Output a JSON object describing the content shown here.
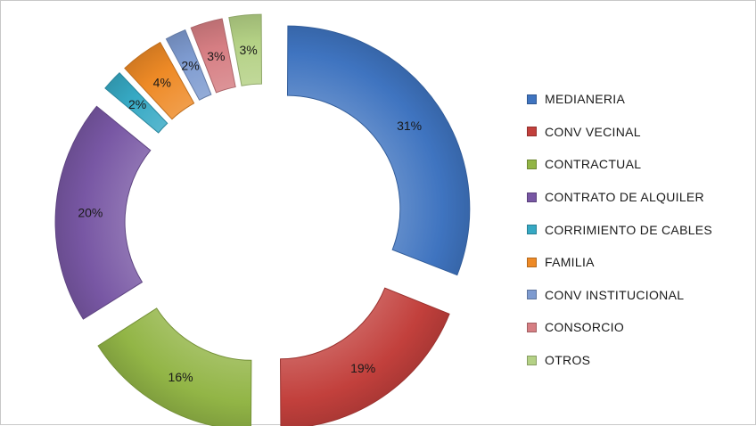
{
  "chart_data": {
    "type": "pie",
    "title": "",
    "series": [
      {
        "name": "MEDIANERIA",
        "value": 31,
        "label": "31%",
        "color": "#3f74c0"
      },
      {
        "name": "CONV VECINAL",
        "value": 19,
        "label": "19%",
        "color": "#c2403c"
      },
      {
        "name": "CONTRACTUAL",
        "value": 16,
        "label": "16%",
        "color": "#92b546"
      },
      {
        "name": "CONTRATO DE ALQUILER",
        "value": 20,
        "label": "20%",
        "color": "#7857a4"
      },
      {
        "name": "CORRIMIENTO DE CABLES",
        "value": 2,
        "label": "2%",
        "color": "#36a9c4"
      },
      {
        "name": "FAMILIA",
        "value": 4,
        "label": "4%",
        "color": "#ee8a26"
      },
      {
        "name": "CONV INSTITUCIONAL",
        "value": 2,
        "label": "2%",
        "color": "#7e9bd0"
      },
      {
        "name": "CONSORCIO",
        "value": 3,
        "label": "3%",
        "color": "#d67e83"
      },
      {
        "name": "OTROS",
        "value": 3,
        "label": "3%",
        "color": "#b4d185"
      }
    ],
    "legend_position": "right",
    "style": "exploded doughnut"
  }
}
